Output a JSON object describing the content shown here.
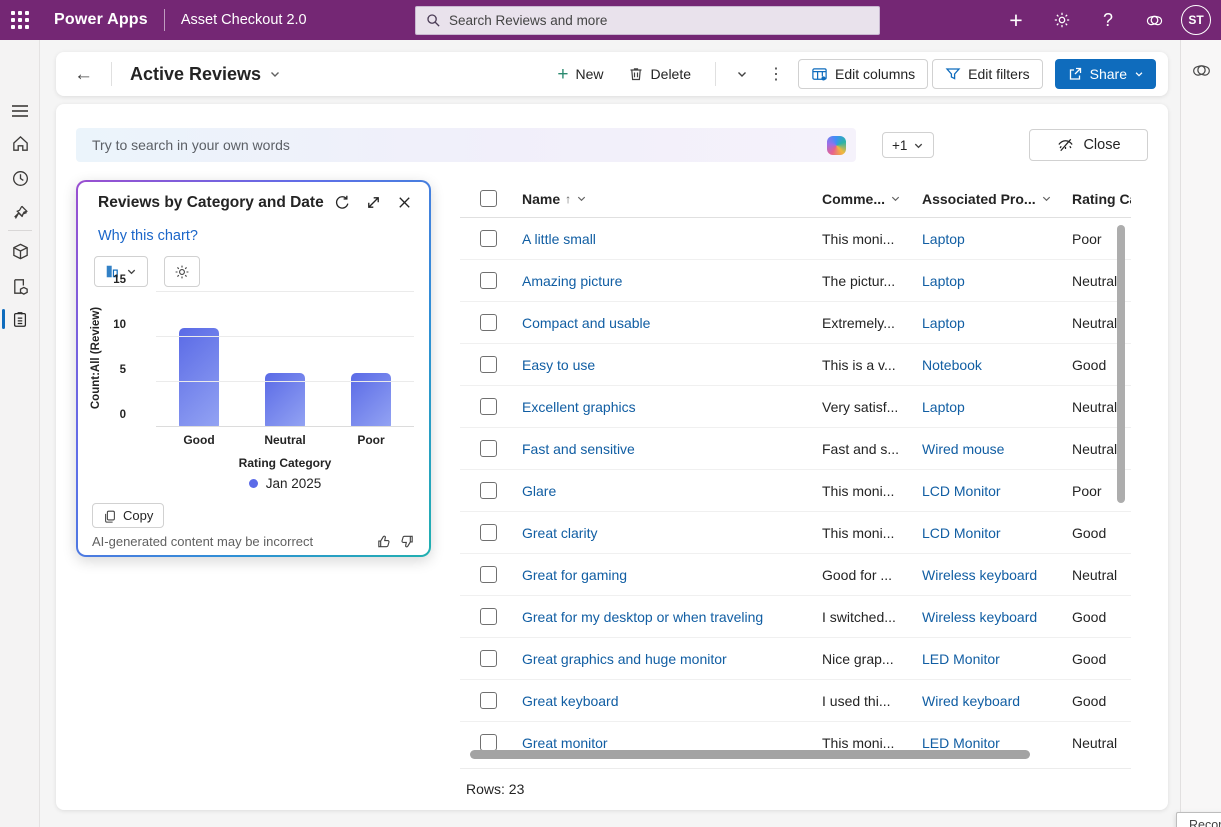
{
  "header": {
    "brand": "Power Apps",
    "app_name": "Asset Checkout 2.0",
    "search_placeholder": "Search Reviews and more",
    "avatar_initials": "ST"
  },
  "icons": {
    "plus": "+",
    "question": "?",
    "back": "←",
    "kebab": "⋮",
    "sort_asc": "↑"
  },
  "sidebar": {
    "items": [
      "menu",
      "home",
      "recent",
      "pinned",
      "box",
      "pages",
      "checklist"
    ],
    "selected": "checklist"
  },
  "command_bar": {
    "title": "Active Reviews",
    "new_label": "New",
    "delete_label": "Delete",
    "edit_columns_label": "Edit columns",
    "edit_filters_label": "Edit filters",
    "share_label": "Share"
  },
  "ai_search": {
    "placeholder": "Try to search in your own words",
    "views_badge": "+1",
    "close_label": "Close"
  },
  "chart_panel": {
    "title": "Reviews by Category and Date",
    "why_link": "Why this chart?",
    "copy_label": "Copy",
    "disclaimer": "AI-generated content may be incorrect"
  },
  "chart_data": {
    "type": "bar",
    "title": "Reviews by Category and Date",
    "categories": [
      "Good",
      "Neutral",
      "Poor"
    ],
    "values": [
      11,
      6,
      6
    ],
    "xlabel": "Rating Category",
    "ylabel": "Count:All (Review)",
    "ylim": [
      0,
      15
    ],
    "yticks": [
      0,
      5,
      10,
      15
    ],
    "legend": [
      "Jan 2025"
    ],
    "legend_position": "bottom",
    "grid": true,
    "bar_color": "#6b7ae9"
  },
  "table": {
    "columns": [
      {
        "label": "Name",
        "sorted": true,
        "menu": true
      },
      {
        "label": "Comme...",
        "sorted": false,
        "menu": true
      },
      {
        "label": "Associated Pro...",
        "sorted": false,
        "menu": true
      },
      {
        "label": "Rating Ca",
        "sorted": false,
        "menu": false
      }
    ],
    "rows": [
      {
        "name": "A little small",
        "comment": "This moni...",
        "product": "Laptop",
        "rating": "Poor"
      },
      {
        "name": "Amazing picture",
        "comment": "The pictur...",
        "product": "Laptop",
        "rating": "Neutral"
      },
      {
        "name": "Compact and usable",
        "comment": "Extremely...",
        "product": "Laptop",
        "rating": "Neutral"
      },
      {
        "name": "Easy to use",
        "comment": "This is a v...",
        "product": "Notebook",
        "rating": "Good"
      },
      {
        "name": "Excellent graphics",
        "comment": "Very satisf...",
        "product": "Laptop",
        "rating": "Neutral"
      },
      {
        "name": "Fast and sensitive",
        "comment": "Fast and s...",
        "product": "Wired mouse",
        "rating": "Neutral"
      },
      {
        "name": "Glare",
        "comment": "This moni...",
        "product": "LCD Monitor",
        "rating": "Poor"
      },
      {
        "name": "Great clarity",
        "comment": "This moni...",
        "product": "LCD Monitor",
        "rating": "Good"
      },
      {
        "name": "Great for gaming",
        "comment": "Good for ...",
        "product": "Wireless keyboard",
        "rating": "Neutral"
      },
      {
        "name": "Great for my desktop or when traveling",
        "comment": "I switched...",
        "product": "Wireless keyboard",
        "rating": "Good"
      },
      {
        "name": "Great graphics and huge monitor",
        "comment": "Nice grap...",
        "product": "LED Monitor",
        "rating": "Good"
      },
      {
        "name": "Great keyboard",
        "comment": "I used thi...",
        "product": "Wired keyboard",
        "rating": "Good"
      },
      {
        "name": "Great monitor",
        "comment": "This moni...",
        "product": "LED Monitor",
        "rating": "Neutral"
      }
    ],
    "row_count_label": "Rows: 23"
  },
  "tooltip": {
    "text": "Record"
  },
  "colors": {
    "brand": "#742774",
    "accent": "#0f6cbd",
    "link": "#115ea3",
    "bar_gradient_start": "#5a6ae6",
    "bar_gradient_end": "#93a3f3",
    "legend_dot": "#5b6be8"
  }
}
